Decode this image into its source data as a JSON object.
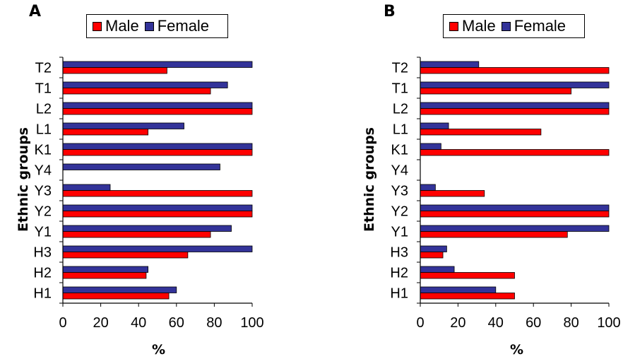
{
  "colors": {
    "male": "#ff0000",
    "female": "#333399"
  },
  "chart_data": [
    {
      "type": "bar",
      "orientation": "horizontal",
      "panel": "A",
      "title": "",
      "xlabel": "%",
      "ylabel": "Ethnic groups",
      "xlim": [
        0,
        100
      ],
      "xticks": [
        0,
        20,
        40,
        60,
        80,
        100
      ],
      "categories": [
        "T2",
        "T1",
        "L2",
        "L1",
        "K1",
        "Y4",
        "Y3",
        "Y2",
        "Y1",
        "H3",
        "H2",
        "H1"
      ],
      "series": [
        {
          "name": "Male",
          "values": [
            55,
            78,
            100,
            45,
            100,
            0,
            100,
            100,
            78,
            66,
            44,
            56
          ]
        },
        {
          "name": "Female",
          "values": [
            100,
            87,
            100,
            64,
            100,
            83,
            25,
            100,
            89,
            100,
            45,
            60
          ]
        }
      ],
      "legend": "top",
      "grid": false
    },
    {
      "type": "bar",
      "orientation": "horizontal",
      "panel": "B",
      "title": "",
      "xlabel": "%",
      "ylabel": "Ethnic groups",
      "xlim": [
        0,
        100
      ],
      "xticks": [
        0,
        20,
        40,
        60,
        80,
        100
      ],
      "categories": [
        "T2",
        "T1",
        "L2",
        "L1",
        "K1",
        "Y4",
        "Y3",
        "Y2",
        "Y1",
        "H3",
        "H2",
        "H1"
      ],
      "series": [
        {
          "name": "Male",
          "values": [
            100,
            80,
            100,
            64,
            100,
            0,
            34,
            100,
            78,
            12,
            50,
            50
          ]
        },
        {
          "name": "Female",
          "values": [
            31,
            100,
            100,
            15,
            11,
            0,
            8,
            100,
            100,
            14,
            18,
            40
          ]
        }
      ],
      "legend": "top",
      "grid": false
    }
  ]
}
